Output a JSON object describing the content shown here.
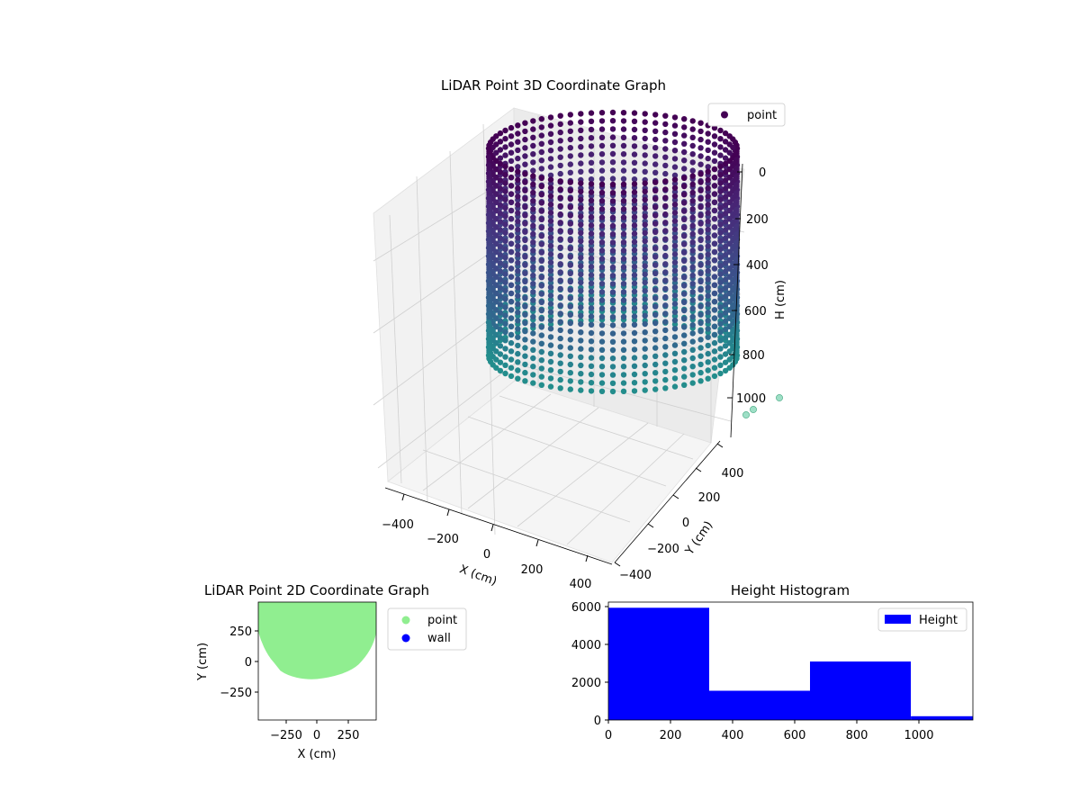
{
  "figure": {
    "background": "#ffffff"
  },
  "chart_data": [
    {
      "type": "scatter",
      "title": "LiDAR Point 3D Coordinate Graph",
      "xlabel": "X (cm)",
      "ylabel": "Y (cm)",
      "zlabel": "H (cm)",
      "xlim": [
        -450,
        450
      ],
      "ylim": [
        -450,
        450
      ],
      "zlim": [
        1050,
        0
      ],
      "x_ticks": [
        "−400",
        "−200",
        "0",
        "200",
        "400"
      ],
      "y_ticks": [
        "−400",
        "−200",
        "0",
        "200",
        "400"
      ],
      "z_ticks": [
        "0",
        "200",
        "400",
        "600",
        "800",
        "1000"
      ],
      "series": [
        {
          "name": "point",
          "colormap": "viridis",
          "legend_color": "#440154",
          "description_shape": "cylinder of points",
          "radius": 420,
          "height_range": [
            0,
            1000
          ]
        }
      ],
      "outliers": [
        {
          "x": 430,
          "y": 60,
          "h": 1010
        },
        {
          "x": 440,
          "y": 120,
          "h": 1030
        },
        {
          "x": 460,
          "y": 300,
          "h": 1000
        }
      ],
      "legend": {
        "position": "upper-right",
        "entries": [
          "point"
        ]
      },
      "grid": true
    },
    {
      "type": "scatter",
      "title": "LiDAR Point 2D Coordinate Graph",
      "xlabel": "X (cm)",
      "ylabel": "Y (cm)",
      "xlim": [
        -480,
        480
      ],
      "ylim": [
        -480,
        480
      ],
      "x_ticks": [
        "−250",
        "0",
        "250"
      ],
      "y_ticks": [
        "250",
        "0",
        "−250"
      ],
      "series": [
        {
          "name": "point",
          "color": "#90ee90"
        },
        {
          "name": "wall",
          "color": "#0000ff"
        }
      ],
      "legend": {
        "position": "outside-right",
        "entries": [
          "point",
          "wall"
        ]
      }
    },
    {
      "type": "bar",
      "title": "Height Histogram",
      "xlim": [
        0,
        1175
      ],
      "ylim": [
        0,
        6250
      ],
      "x_ticks": [
        "0",
        "200",
        "400",
        "600",
        "800",
        "1000"
      ],
      "y_ticks": [
        "0",
        "2000",
        "4000",
        "6000"
      ],
      "bins": [
        {
          "start": 0,
          "end": 325,
          "count": 5950
        },
        {
          "start": 325,
          "end": 650,
          "count": 1550
        },
        {
          "start": 650,
          "end": 975,
          "count": 3100
        },
        {
          "start": 975,
          "end": 1175,
          "count": 200
        }
      ],
      "series": [
        {
          "name": "Height",
          "color": "#0000ff"
        }
      ],
      "legend": {
        "position": "upper-right",
        "entries": [
          "Height"
        ]
      }
    }
  ]
}
